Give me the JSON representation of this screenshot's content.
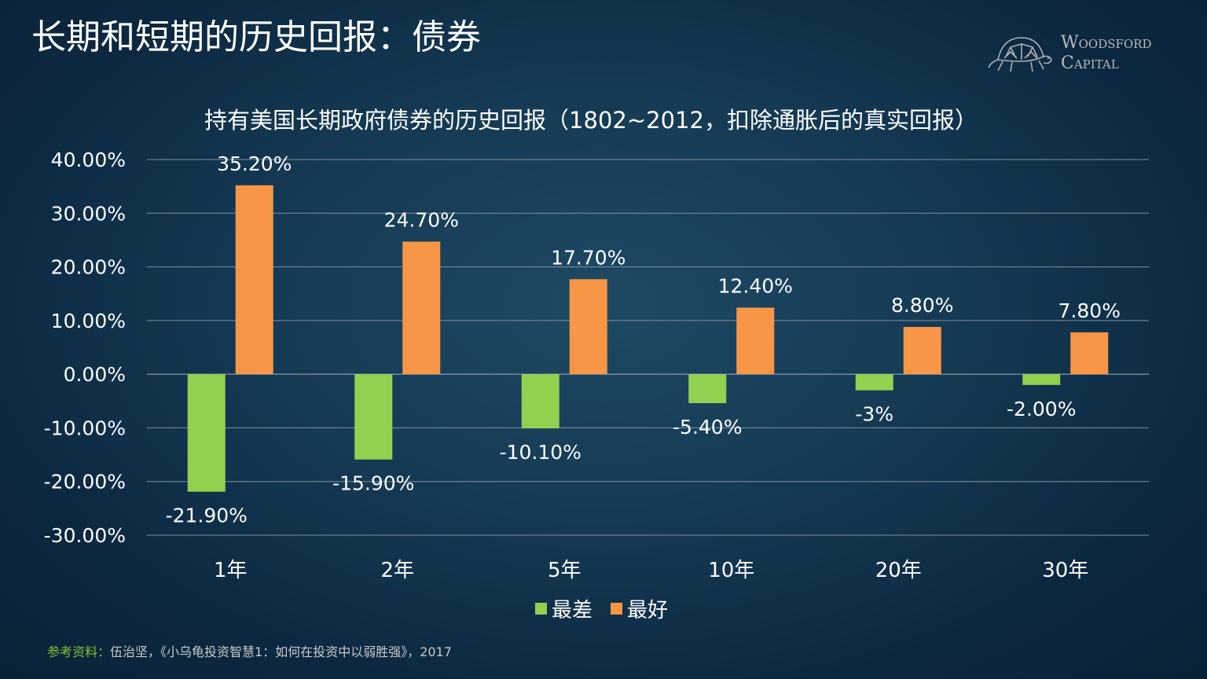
{
  "page": {
    "title": "长期和短期的历史回报：债券"
  },
  "logo": {
    "line1": "Woodsford",
    "line2": "Capital",
    "icon": "tortoise-icon"
  },
  "colors": {
    "worst": "#92d050",
    "best": "#f79646",
    "grid": "#7f8f9c",
    "text": "#ffffff",
    "footer_label": "#7ec136",
    "footer_text": "#c8c8c8"
  },
  "chart_data": {
    "type": "bar",
    "title": "持有美国长期政府债券的历史回报（1802~2012，扣除通胀后的真实回报）",
    "categories": [
      "1年",
      "2年",
      "5年",
      "10年",
      "20年",
      "30年"
    ],
    "series": [
      {
        "name": "最差",
        "values": [
          -21.9,
          -15.9,
          -10.1,
          -5.4,
          -3.0,
          -2.0
        ],
        "labels": [
          "-21.90%",
          "-15.90%",
          "-10.10%",
          "-5.40%",
          "-3%",
          "-2.00%"
        ]
      },
      {
        "name": "最好",
        "values": [
          35.2,
          24.7,
          17.7,
          12.4,
          8.8,
          7.8
        ],
        "labels": [
          "35.20%",
          "24.70%",
          "17.70%",
          "12.40%",
          "8.80%",
          "7.80%"
        ]
      }
    ],
    "ylim": [
      -30,
      40
    ],
    "yticks": [
      40,
      30,
      20,
      10,
      0,
      -10,
      -20,
      -30
    ],
    "ytick_labels": [
      "40.00%",
      "30.00%",
      "20.00%",
      "10.00%",
      "0.00%",
      "-10.00%",
      "-20.00%",
      "-30.00%"
    ],
    "xlabel": "",
    "ylabel": "",
    "grid": true,
    "legend_position": "bottom-center"
  },
  "footer": {
    "label": "参考资料：",
    "text": "伍治坚，《小乌龟投资智慧1：如何在投资中以弱胜强》，2017"
  }
}
